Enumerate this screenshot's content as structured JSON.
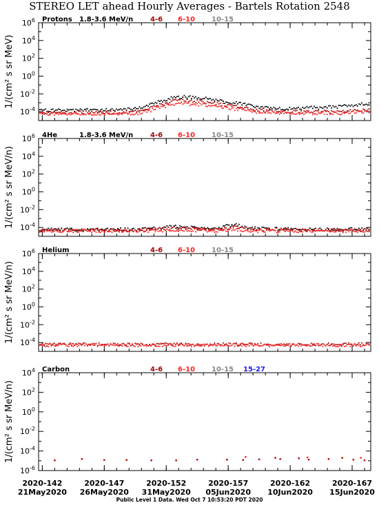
{
  "title": "STEREO LET ahead Hourly Averages - Bartels Rotation 2548",
  "footer": "Public Level 1 Data. Wed Oct  7 10:53:20 PDT 2020",
  "colors": {
    "ch_4_6": "#aa0000",
    "ch_6_10": "#ff2222",
    "ch_10_15": "#888888",
    "ch_15_27": "#1a1aee",
    "main_series": "#000000"
  },
  "chart_data": [
    {
      "type": "scatter",
      "panel": "protons",
      "species": "Protons",
      "energy_range": "1.8-3.6 MeV/n",
      "ylabel": "1/(cm² s sr MeV)",
      "y_scale": "log",
      "ylim": [
        1e-05,
        1000000.0
      ],
      "y_ticks": [
        {
          "value": 1000000.0,
          "label": "10^6"
        },
        {
          "value": 10000.0,
          "label": "10^4"
        },
        {
          "value": 100.0,
          "label": "10^2"
        },
        {
          "value": 1,
          "label": "10^0"
        },
        {
          "value": 0.01,
          "label": "10^-2"
        },
        {
          "value": 0.0001,
          "label": "10^-4"
        }
      ],
      "legend": [
        {
          "label": "4-6",
          "color": "#aa0000"
        },
        {
          "label": "6-10",
          "color": "#ff2222"
        },
        {
          "label": "10-15",
          "color": "#888888"
        }
      ],
      "series": [
        {
          "name": "1.8-3.6 MeV/n",
          "color": "#000000",
          "points": [
            [
              142.5,
              0.00015
            ],
            [
              145,
              0.00015
            ],
            [
              148,
              0.00016
            ],
            [
              150,
              0.00025
            ],
            [
              151.5,
              0.0015
            ],
            [
              152.5,
              0.004
            ],
            [
              153.5,
              0.0045
            ],
            [
              155,
              0.0035
            ],
            [
              156,
              0.002
            ],
            [
              157,
              0.001
            ],
            [
              158,
              0.0009
            ],
            [
              159,
              0.0004
            ],
            [
              161,
              0.0002
            ],
            [
              163,
              0.00025
            ],
            [
              165,
              0.0003
            ],
            [
              166,
              0.00035
            ],
            [
              167,
              0.0005
            ],
            [
              168.2,
              0.0008
            ]
          ]
        },
        {
          "name": "4-6",
          "color": "#aa0000",
          "points": [
            [
              142.5,
              8e-05
            ],
            [
              145,
              8e-05
            ],
            [
              148,
              8e-05
            ],
            [
              150,
              0.0001
            ],
            [
              151.5,
              0.0006
            ],
            [
              152.5,
              0.0015
            ],
            [
              153.5,
              0.0018
            ],
            [
              155,
              0.0013
            ],
            [
              156,
              0.0008
            ],
            [
              157,
              0.0005
            ],
            [
              158,
              0.00035
            ],
            [
              159,
              0.00015
            ],
            [
              161,
              0.0001
            ],
            [
              163,
              0.0001
            ],
            [
              165,
              0.0001
            ],
            [
              166,
              0.00011
            ],
            [
              167,
              0.00013
            ],
            [
              168.2,
              0.00018
            ]
          ]
        },
        {
          "name": "6-10",
          "color": "#ff2222",
          "points": [
            [
              142.5,
              6e-05
            ],
            [
              145,
              6e-05
            ],
            [
              148,
              6e-05
            ],
            [
              150,
              7e-05
            ],
            [
              151.5,
              0.0003
            ],
            [
              152.5,
              0.0007
            ],
            [
              153.5,
              0.0008
            ],
            [
              155,
              0.0006
            ],
            [
              156,
              0.0004
            ],
            [
              157,
              0.00025
            ],
            [
              158,
              0.00018
            ],
            [
              159,
              0.0001
            ],
            [
              161,
              7e-05
            ],
            [
              163,
              7e-05
            ],
            [
              165,
              7e-05
            ],
            [
              166,
              7e-05
            ],
            [
              167,
              8e-05
            ],
            [
              168.2,
              0.0001
            ]
          ]
        }
      ]
    },
    {
      "type": "scatter",
      "panel": "helium4",
      "species": "4He",
      "energy_range": "1.8-3.6 MeV/n",
      "ylabel": "1/(cm² s sr MeV/n)",
      "y_scale": "log",
      "ylim": [
        1e-05,
        1000000.0
      ],
      "y_ticks": [
        {
          "value": 1000000.0,
          "label": "10^6"
        },
        {
          "value": 10000.0,
          "label": "10^4"
        },
        {
          "value": 100.0,
          "label": "10^2"
        },
        {
          "value": 1,
          "label": "10^0"
        },
        {
          "value": 0.01,
          "label": "10^-2"
        },
        {
          "value": 0.0001,
          "label": "10^-4"
        }
      ],
      "legend": [
        {
          "label": "4-6",
          "color": "#aa0000"
        },
        {
          "label": "6-10",
          "color": "#ff2222"
        },
        {
          "label": "10-15",
          "color": "#888888"
        }
      ],
      "series": [
        {
          "name": "1.8-3.6 MeV/n",
          "color": "#000000",
          "points": [
            [
              142.5,
              6e-05
            ],
            [
              146,
              6e-05
            ],
            [
              150,
              6e-05
            ],
            [
              152.5,
              0.00012
            ],
            [
              154,
              0.00011
            ],
            [
              156,
              8e-05
            ],
            [
              157.5,
              0.0002
            ],
            [
              159,
              8e-05
            ],
            [
              163,
              6e-05
            ],
            [
              168.2,
              6e-05
            ]
          ]
        },
        {
          "name": "4-6",
          "color": "#aa0000",
          "points": [
            [
              142.5,
              5e-05
            ],
            [
              146,
              5e-05
            ],
            [
              150,
              5e-05
            ],
            [
              152.5,
              8e-05
            ],
            [
              154,
              7e-05
            ],
            [
              156,
              6e-05
            ],
            [
              157.5,
              0.00011
            ],
            [
              159,
              6e-05
            ],
            [
              163,
              5e-05
            ],
            [
              168.2,
              5e-05
            ]
          ]
        },
        {
          "name": "6-10",
          "color": "#ff2222",
          "points": [
            [
              142.5,
              4e-05
            ],
            [
              146,
              4e-05
            ],
            [
              150,
              4e-05
            ],
            [
              152.5,
              5e-05
            ],
            [
              154,
              5e-05
            ],
            [
              156,
              4e-05
            ],
            [
              157.5,
              6e-05
            ],
            [
              159,
              4e-05
            ],
            [
              163,
              4e-05
            ],
            [
              168.2,
              4e-05
            ]
          ]
        }
      ]
    },
    {
      "type": "scatter",
      "panel": "helium",
      "species": "Helium",
      "energy_range": "",
      "ylabel": "1/(cm² s sr MeV/n)",
      "y_scale": "log",
      "ylim": [
        1e-05,
        1000000.0
      ],
      "y_ticks": [
        {
          "value": 1000000.0,
          "label": "10^6"
        },
        {
          "value": 10000.0,
          "label": "10^4"
        },
        {
          "value": 100.0,
          "label": "10^2"
        },
        {
          "value": 1,
          "label": "10^0"
        },
        {
          "value": 0.01,
          "label": "10^-2"
        },
        {
          "value": 0.0001,
          "label": "10^-4"
        }
      ],
      "legend": [
        {
          "label": "4-6",
          "color": "#aa0000"
        },
        {
          "label": "6-10",
          "color": "#ff2222"
        },
        {
          "label": "10-15",
          "color": "#888888"
        }
      ],
      "series": [
        {
          "name": "4-6",
          "color": "#aa0000",
          "points": [
            [
              142.5,
              6e-05
            ],
            [
              146,
              6e-05
            ],
            [
              150,
              6e-05
            ],
            [
              154,
              6e-05
            ],
            [
              158,
              6e-05
            ],
            [
              162,
              6e-05
            ],
            [
              166,
              6e-05
            ],
            [
              168.2,
              6e-05
            ]
          ]
        },
        {
          "name": "6-10",
          "color": "#ff2222",
          "points": [
            [
              142.5,
              5e-05
            ],
            [
              146,
              5e-05
            ],
            [
              150,
              5e-05
            ],
            [
              154,
              5e-05
            ],
            [
              158,
              5e-05
            ],
            [
              162,
              5e-05
            ],
            [
              166,
              5e-05
            ],
            [
              168.2,
              5e-05
            ]
          ]
        }
      ]
    },
    {
      "type": "scatter",
      "panel": "carbon",
      "species": "Carbon",
      "energy_range": "",
      "ylabel": "1/(cm² s sr MeV/n)",
      "y_scale": "log",
      "ylim": [
        1e-06,
        10000.0
      ],
      "y_ticks": [
        {
          "value": 10000.0,
          "label": "10^4"
        },
        {
          "value": 100.0,
          "label": "10^2"
        },
        {
          "value": 1,
          "label": "10^0"
        },
        {
          "value": 0.01,
          "label": "10^-2"
        },
        {
          "value": 0.0001,
          "label": "10^-4"
        },
        {
          "value": 1e-06,
          "label": "10^-6"
        }
      ],
      "legend": [
        {
          "label": "4-6",
          "color": "#aa0000"
        },
        {
          "label": "6-10",
          "color": "#ff2222"
        },
        {
          "label": "10-15",
          "color": "#888888"
        },
        {
          "label": "15-27",
          "color": "#1a1aee"
        }
      ],
      "series": [
        {
          "name": "4-6",
          "color": "#aa0000",
          "points": [
            [
              143,
              1.1e-05
            ],
            [
              145.2,
              1.5e-05
            ],
            [
              147,
              1.2e-05
            ],
            [
              148.8,
              1.2e-05
            ],
            [
              150.8,
              1.1e-05
            ],
            [
              152.8,
              1.1e-05
            ],
            [
              154.5,
              1.3e-05
            ],
            [
              156.9,
              1.3e-05
            ],
            [
              158.2,
              1.2e-05
            ],
            [
              159.5,
              1.4e-05
            ],
            [
              160.8,
              2e-05
            ],
            [
              161.2,
              1.5e-05
            ],
            [
              162.7,
              1.8e-05
            ],
            [
              163.5,
              1.3e-05
            ],
            [
              165.1,
              1.5e-05
            ],
            [
              166.2,
              2e-05
            ],
            [
              167.1,
              1.3e-05
            ],
            [
              168,
              1.1e-05
            ]
          ]
        },
        {
          "name": "6-10",
          "color": "#ff2222",
          "points": [
            [
              158.4,
              2.5e-05
            ],
            [
              163.4,
              2.2e-05
            ],
            [
              167.7,
              2e-05
            ]
          ]
        }
      ]
    }
  ],
  "x_axis": {
    "xlim": [
      141.7,
      168.5
    ],
    "ticks": [
      {
        "value": 142,
        "label": "2020-142",
        "date": "21May2020"
      },
      {
        "value": 147,
        "label": "2020-147",
        "date": "26May2020"
      },
      {
        "value": 152,
        "label": "2020-152",
        "date": "31May2020"
      },
      {
        "value": 157,
        "label": "2020-157",
        "date": "05Jun2020"
      },
      {
        "value": 162,
        "label": "2020-162",
        "date": "10Jun2020"
      },
      {
        "value": 167,
        "label": "2020-167",
        "date": "15Jun2020"
      }
    ]
  }
}
